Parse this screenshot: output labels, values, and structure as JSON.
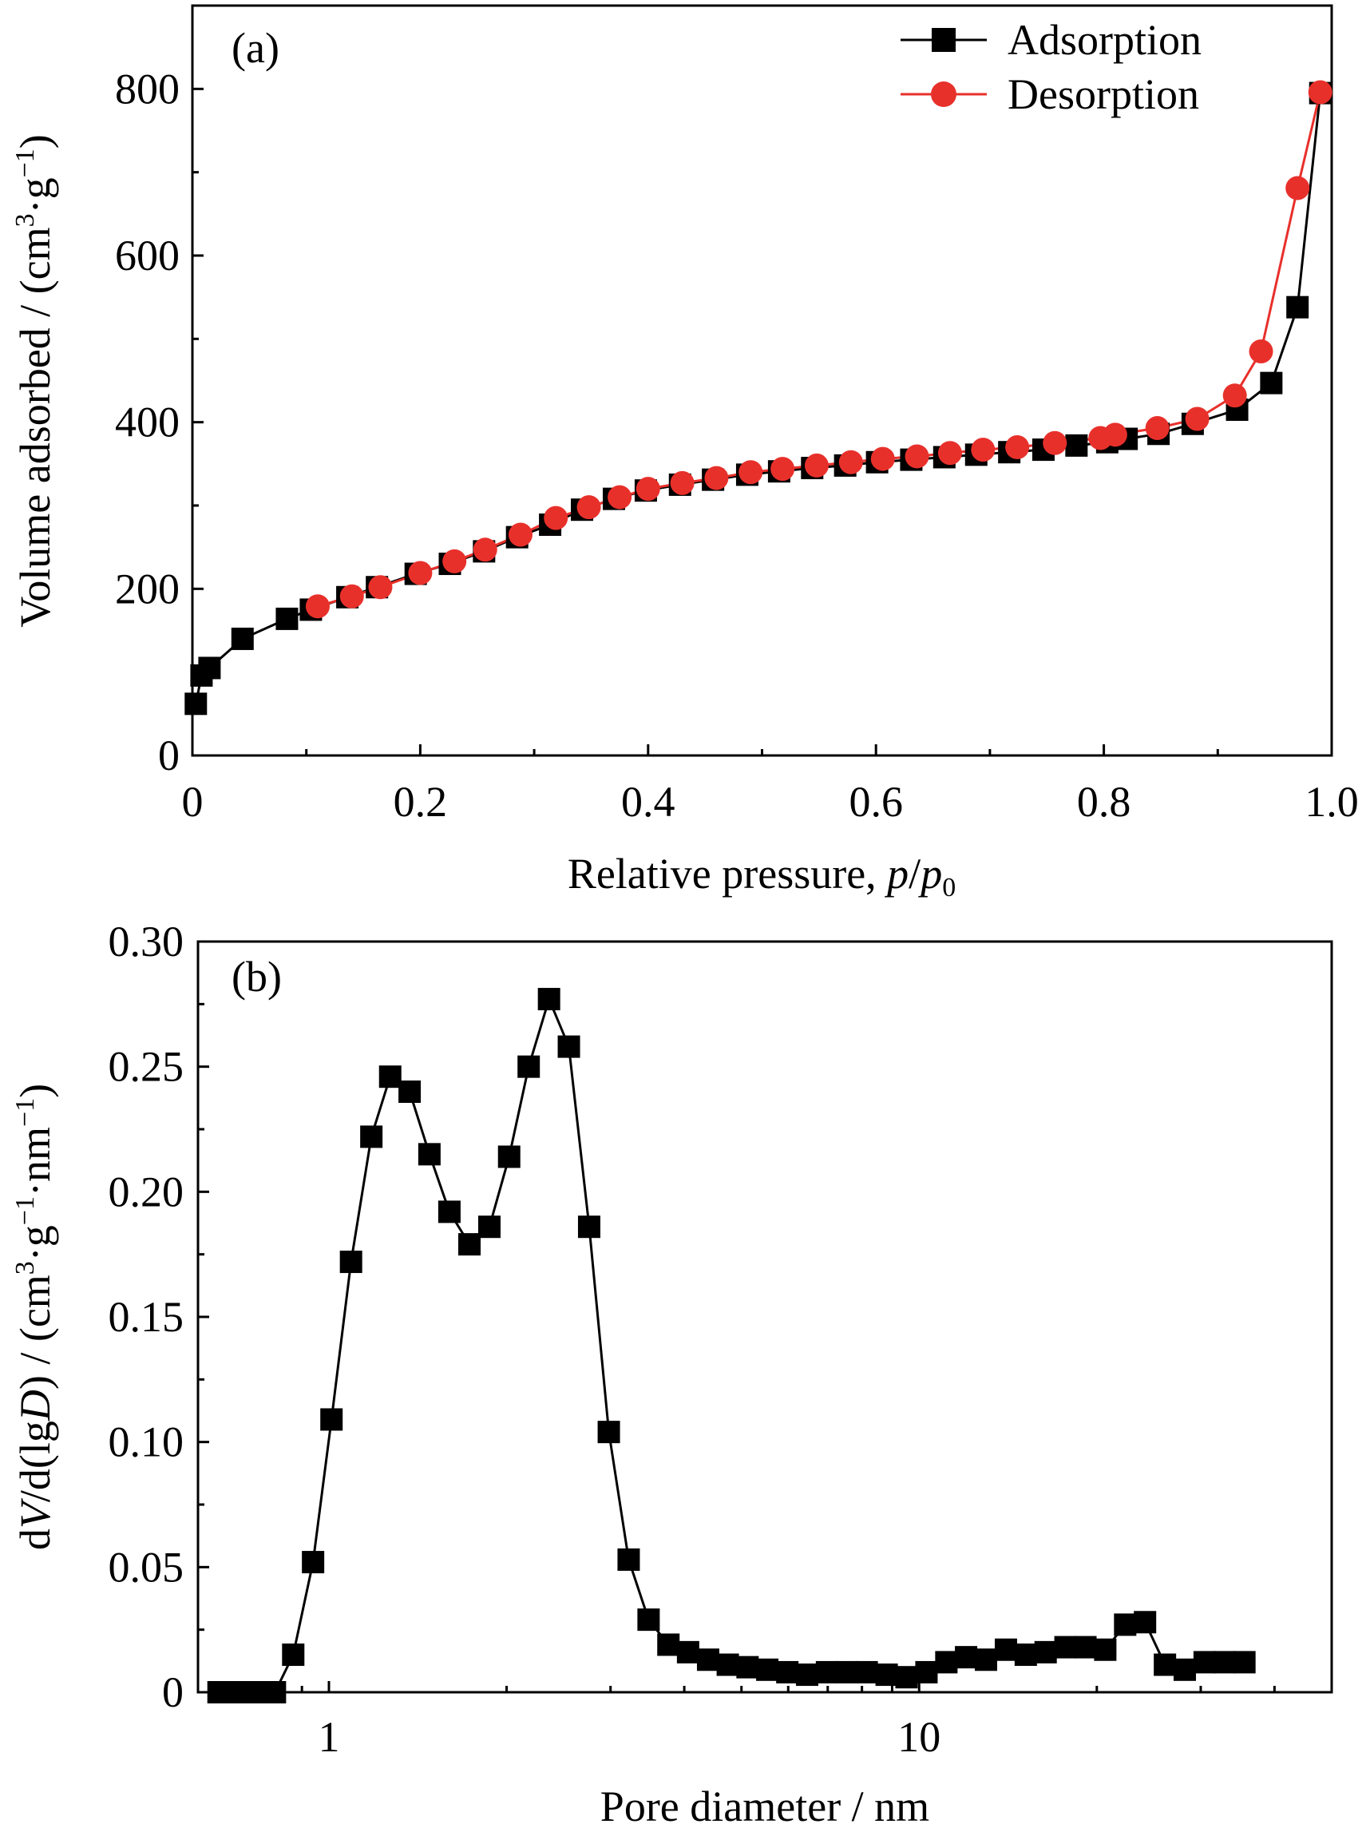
{
  "chart_data": [
    {
      "id": "a",
      "type": "line",
      "panel_label": "(a)",
      "xlabel": "Relative pressure, p/p0",
      "xlabel_parts": {
        "main": "Relative pressure, ",
        "p": "p",
        "slash": "/",
        "p0": "p",
        "sub": "0"
      },
      "ylabel": "Volume adsorbed / (cm³·g⁻¹)",
      "ylabel_parts": {
        "main": "Volume adsorbed / (cm",
        "sup1": "3",
        "mid": "·g",
        "sup2": "−1",
        "end": ")"
      },
      "xlim": [
        0,
        1.0
      ],
      "ylim": [
        0,
        900
      ],
      "x_ticks": [
        "0",
        "0.2",
        "0.4",
        "0.6",
        "0.8",
        "1.0"
      ],
      "y_ticks": [
        "0",
        "200",
        "400",
        "600",
        "800"
      ],
      "legend_position": "top-right",
      "series": [
        {
          "name": "Adsorption",
          "marker": "square",
          "color": "#000000",
          "x": [
            0.003,
            0.008,
            0.015,
            0.044,
            0.083,
            0.104,
            0.136,
            0.162,
            0.196,
            0.226,
            0.256,
            0.285,
            0.314,
            0.342,
            0.37,
            0.398,
            0.428,
            0.457,
            0.487,
            0.515,
            0.544,
            0.573,
            0.601,
            0.631,
            0.66,
            0.688,
            0.717,
            0.747,
            0.776,
            0.803,
            0.82,
            0.848,
            0.878,
            0.917,
            0.947,
            0.97,
            0.99
          ],
          "y": [
            62,
            96,
            105,
            140,
            164,
            175,
            190,
            202,
            218,
            230,
            245,
            262,
            277,
            295,
            308,
            318,
            325,
            331,
            337,
            341,
            345,
            348,
            352,
            355,
            358,
            361,
            364,
            367,
            372,
            376,
            380,
            386,
            398,
            415,
            447,
            538,
            795
          ]
        },
        {
          "name": "Desorption",
          "marker": "circle",
          "color": "#e8302b",
          "x": [
            0.11,
            0.14,
            0.165,
            0.2,
            0.23,
            0.257,
            0.288,
            0.319,
            0.348,
            0.375,
            0.4,
            0.43,
            0.46,
            0.49,
            0.518,
            0.548,
            0.578,
            0.606,
            0.636,
            0.665,
            0.694,
            0.724,
            0.757,
            0.797,
            0.81,
            0.847,
            0.882,
            0.915,
            0.938,
            0.97,
            0.99
          ],
          "y": [
            179,
            191,
            202,
            219,
            233,
            247,
            265,
            285,
            298,
            310,
            320,
            327,
            333,
            340,
            344,
            348,
            352,
            356,
            359,
            363,
            367,
            370,
            375,
            381,
            385,
            393,
            404,
            432,
            485,
            681,
            796
          ]
        }
      ]
    },
    {
      "id": "b",
      "type": "line",
      "panel_label": "(b)",
      "xlabel": "Pore diameter / nm",
      "ylabel": "dV/d(lgD) / (cm³·g⁻¹·nm⁻¹)",
      "ylabel_parts": {
        "d1": "d",
        "V": "V",
        "d2": "/d(lg",
        "D": "D",
        "close": ") / (cm",
        "sup1": "3",
        "g": "·g",
        "sup2": "−1",
        "nm": "·nm",
        "sup3": "−1",
        "end": ")"
      },
      "x_scale": "log",
      "xlim": [
        0.6,
        50
      ],
      "ylim": [
        0,
        0.3
      ],
      "x_ticks": [
        "1",
        "10"
      ],
      "y_ticks": [
        "0",
        "0.05",
        "0.10",
        "0.15",
        "0.20",
        "0.25",
        "0.30"
      ],
      "series": [
        {
          "marker": "square",
          "color": "#000000",
          "x": [
            0.65,
            0.7,
            0.75,
            0.81,
            0.87,
            0.94,
            1.01,
            1.09,
            1.18,
            1.27,
            1.37,
            1.48,
            1.6,
            1.73,
            1.87,
            2.02,
            2.18,
            2.36,
            2.55,
            2.76,
            2.98,
            3.22,
            3.48,
            3.76,
            4.06,
            4.39,
            4.74,
            5.12,
            5.53,
            5.98,
            6.46,
            6.98,
            7.54,
            8.15,
            8.81,
            9.52,
            10.29,
            11.12,
            12.01,
            12.98,
            14.03,
            15.16,
            16.38,
            17.7,
            19.13,
            20.67,
            22.34,
            24.14,
            26.09,
            28.19,
            30.46,
            32.92,
            35.57
          ],
          "y": [
            0.0,
            0.0,
            0.0,
            0.0,
            0.015,
            0.052,
            0.109,
            0.172,
            0.222,
            0.246,
            0.24,
            0.215,
            0.192,
            0.179,
            0.186,
            0.214,
            0.25,
            0.277,
            0.258,
            0.186,
            0.104,
            0.053,
            0.029,
            0.019,
            0.016,
            0.013,
            0.011,
            0.01,
            0.009,
            0.008,
            0.007,
            0.008,
            0.008,
            0.008,
            0.007,
            0.006,
            0.008,
            0.012,
            0.014,
            0.013,
            0.017,
            0.015,
            0.016,
            0.018,
            0.018,
            0.017,
            0.027,
            0.028,
            0.011,
            0.009,
            0.012,
            0.012,
            0.012
          ]
        }
      ]
    }
  ]
}
